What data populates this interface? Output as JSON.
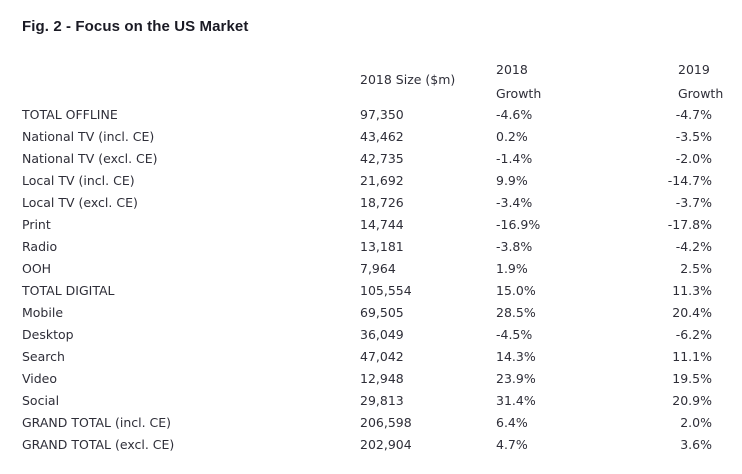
{
  "title": "Fig. 2 - Focus on the US Market",
  "headers": {
    "size": "2018 Size ($m)",
    "growth2018_year": "2018",
    "growth2018_label": "Growth",
    "growth2019_year": "2019",
    "growth2019_label": "Growth"
  },
  "rows": [
    {
      "label": "TOTAL OFFLINE",
      "size": "97,350",
      "g2018": "-4.6%",
      "g2019": "-4.7%"
    },
    {
      "label": "National TV (incl. CE)",
      "size": "43,462",
      "g2018": "0.2%",
      "g2019": "-3.5%"
    },
    {
      "label": "National TV (excl. CE)",
      "size": "42,735",
      "g2018": "-1.4%",
      "g2019": "-2.0%"
    },
    {
      "label": "Local TV (incl. CE)",
      "size": "21,692",
      "g2018": "9.9%",
      "g2019": "-14.7%"
    },
    {
      "label": "Local TV (excl. CE)",
      "size": "18,726",
      "g2018": "-3.4%",
      "g2019": "-3.7%"
    },
    {
      "label": "Print",
      "size": "14,744",
      "g2018": "-16.9%",
      "g2019": "-17.8%"
    },
    {
      "label": "Radio",
      "size": "13,181",
      "g2018": "-3.8%",
      "g2019": "-4.2%"
    },
    {
      "label": "OOH",
      "size": "7,964",
      "g2018": "1.9%",
      "g2019": "2.5%"
    },
    {
      "label": "TOTAL DIGITAL",
      "size": "105,554",
      "g2018": "15.0%",
      "g2019": "11.3%"
    },
    {
      "label": "Mobile",
      "size": "69,505",
      "g2018": "28.5%",
      "g2019": "20.4%"
    },
    {
      "label": "Desktop",
      "size": "36,049",
      "g2018": "-4.5%",
      "g2019": "-6.2%"
    },
    {
      "label": "Search",
      "size": "47,042",
      "g2018": "14.3%",
      "g2019": "11.1%"
    },
    {
      "label": "Video",
      "size": "12,948",
      "g2018": "23.9%",
      "g2019": "19.5%"
    },
    {
      "label": "Social",
      "size": "29,813",
      "g2018": "31.4%",
      "g2019": "20.9%"
    },
    {
      "label": "GRAND TOTAL (incl. CE)",
      "size": "206,598",
      "g2018": "6.4%",
      "g2019": "2.0%"
    },
    {
      "label": "GRAND TOTAL (excl. CE)",
      "size": "202,904",
      "g2018": "4.7%",
      "g2019": "3.6%"
    }
  ]
}
